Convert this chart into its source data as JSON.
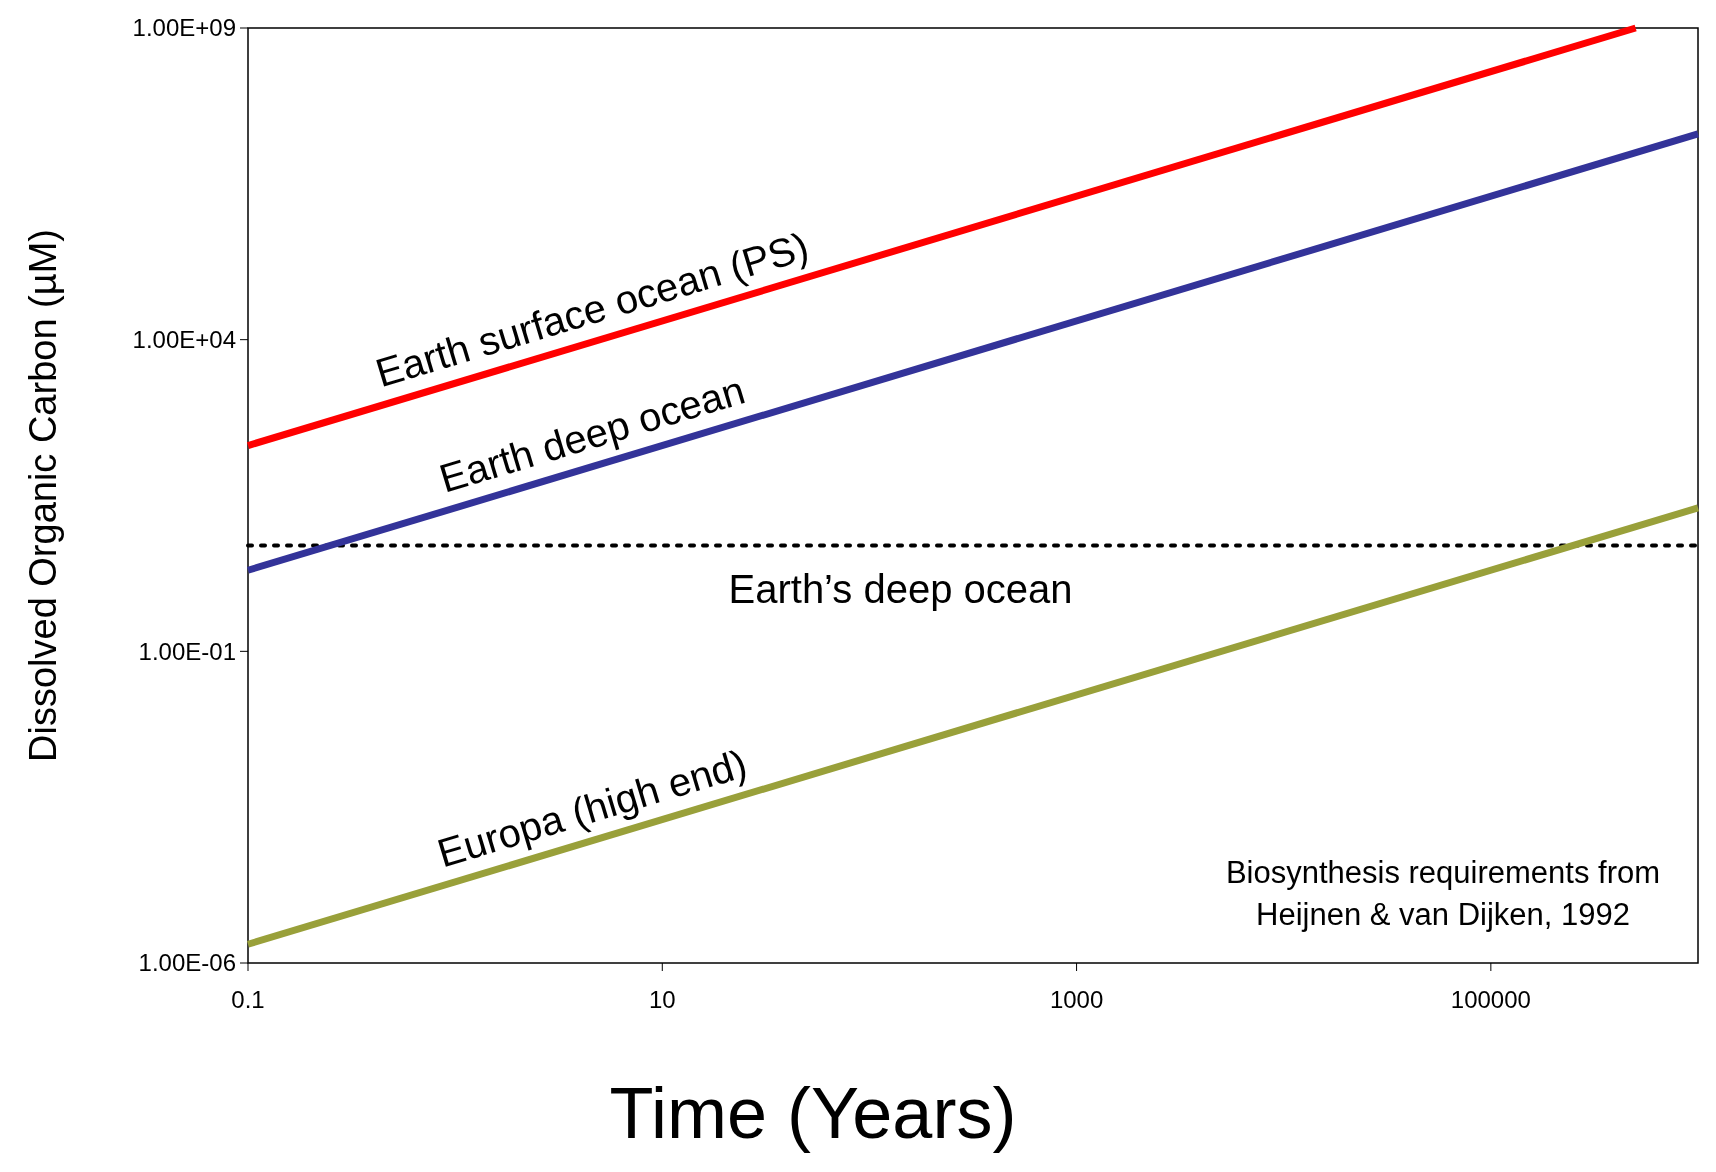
{
  "chart_data": {
    "type": "line",
    "xlabel": "Time (Years)",
    "ylabel": "Dissolved Organic Carbon (µM)",
    "log": "xy",
    "xlim": [
      0.1,
      1000000
    ],
    "ylim": [
      1e-06,
      1000000000
    ],
    "xticks": [
      0.1,
      10,
      1000,
      100000
    ],
    "yticks": [
      {
        "value": 1e-06,
        "label": "1.00E-06"
      },
      {
        "value": 0.1,
        "label": "1.00E-01"
      },
      {
        "value": 10000,
        "label": "1.00E+04"
      },
      {
        "value": 1000000000,
        "label": "1.00E+09"
      }
    ],
    "series": [
      {
        "name": "Earth surface ocean (PS)",
        "color": "#ff0000",
        "x": [
          0.1,
          500000
        ],
        "values": [
          200,
          1000000000
        ]
      },
      {
        "name": "Earth deep ocean",
        "color": "#333399",
        "x": [
          0.1,
          1000000
        ],
        "values": [
          2,
          20000000
        ]
      },
      {
        "name": "Europa (high end)",
        "color": "#99a03a",
        "x": [
          0.1,
          1000000
        ],
        "values": [
          2e-06,
          20
        ]
      }
    ],
    "ref_lines": [
      {
        "axis": "y",
        "value": 5,
        "label": "Earth’s deep ocean",
        "color": "#000000",
        "line_style": "dotted"
      }
    ],
    "annotations": [
      "Biosynthesis requirements from Heijnen & van Dijken, 1992"
    ],
    "grid": false,
    "marker": "none",
    "line_style": "solid"
  }
}
